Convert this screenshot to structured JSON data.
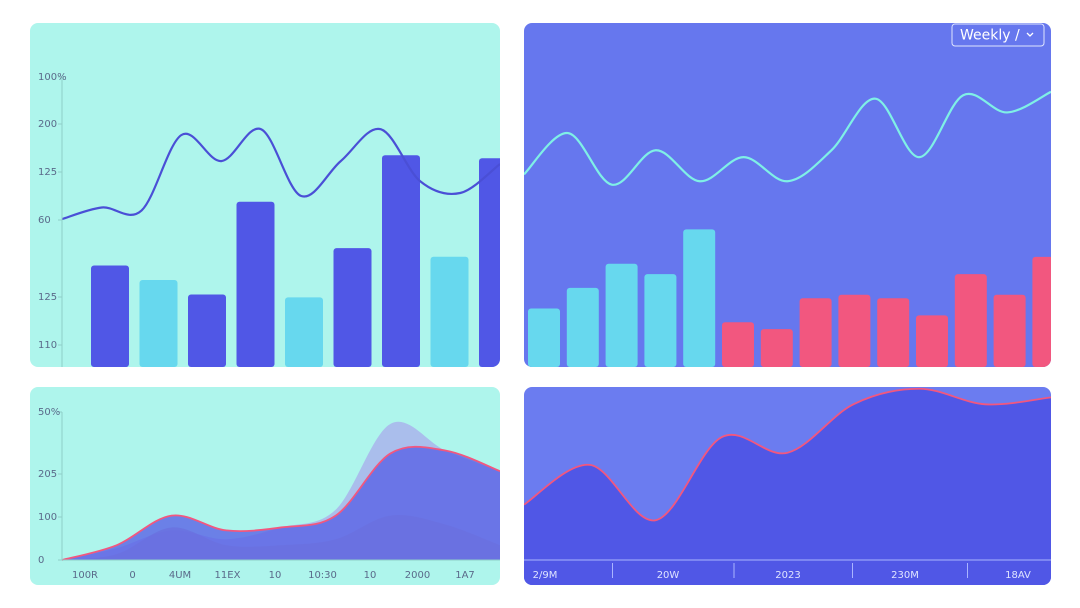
{
  "chart_data": [
    {
      "type": "bar",
      "background": "#aef5ec",
      "ylim": [
        0,
        100
      ],
      "y_labels": [
        "100%",
        "200",
        "125",
        "60",
        "125",
        "110"
      ],
      "values": [
        35,
        30,
        25,
        57,
        24,
        41,
        73,
        38,
        72
      ],
      "colors": [
        "#5057e6",
        "#67d8ee",
        "#5057e6",
        "#5057e6",
        "#67d8ee",
        "#5057e6",
        "#5057e6",
        "#67d8ee",
        "#5057e6"
      ],
      "line": {
        "color": "#4a4fd6",
        "values": [
          51,
          55,
          54,
          80,
          71,
          82,
          59,
          71,
          82,
          64,
          60,
          70
        ]
      }
    },
    {
      "type": "bar",
      "background": "#6677ee",
      "ylim": [
        0,
        100
      ],
      "values": [
        17,
        23,
        30,
        27,
        40,
        13,
        11,
        20,
        21,
        20,
        15,
        27,
        21,
        32
      ],
      "colors": [
        "#67d8ee",
        "#67d8ee",
        "#67d8ee",
        "#67d8ee",
        "#67d8ee",
        "#f2577f",
        "#f2577f",
        "#f2577f",
        "#f2577f",
        "#f2577f",
        "#f2577f",
        "#f2577f",
        "#f2577f",
        "#f2577f"
      ],
      "line": {
        "color": "#7ff0e6",
        "values": [
          56,
          68,
          53,
          63,
          54,
          61,
          54,
          63,
          78,
          61,
          79,
          74,
          80
        ]
      },
      "dropdown": "Weekly /"
    },
    {
      "type": "area",
      "background": "#aef5ec",
      "ylim": [
        0,
        50
      ],
      "y_labels": [
        "50%",
        "205",
        "100",
        "0"
      ],
      "categories": [
        "100R",
        "0",
        "4UM",
        "11EX",
        "10",
        "10:30",
        "10",
        "2000",
        "1A7"
      ],
      "series": [
        {
          "color": "#a9b0ec",
          "values": [
            0,
            4,
            10,
            7,
            11,
            17,
            46,
            37,
            30
          ]
        },
        {
          "color": "#5a63e6",
          "stroke": "#f2577f",
          "values": [
            0,
            5,
            15,
            10,
            11,
            15,
            36,
            37,
            30
          ]
        },
        {
          "color": "#6a70e0",
          "values": [
            0,
            2,
            11,
            5,
            5,
            7,
            15,
            12,
            5
          ]
        }
      ]
    },
    {
      "type": "area",
      "background": "#6b7cf0",
      "ylim": [
        0,
        100
      ],
      "x_labels": [
        "2/9M",
        "20W",
        "2023",
        "230M",
        "18AV"
      ],
      "series": [
        {
          "color": "#5057e6",
          "stroke": "#f2577f",
          "values": [
            32,
            55,
            23,
            71,
            62,
            90,
            99,
            90,
            94
          ]
        }
      ]
    }
  ]
}
